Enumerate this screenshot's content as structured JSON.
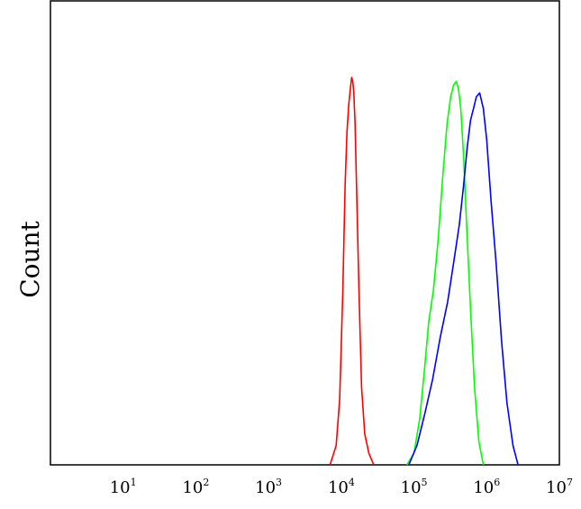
{
  "chart_data": {
    "type": "line",
    "title": "",
    "xlabel": "",
    "ylabel": "Count",
    "xscale": "log",
    "xlim": [
      1,
      10000000
    ],
    "ylim": [
      0,
      100
    ],
    "grid": false,
    "xticks": [
      {
        "base": "10",
        "exp": "1",
        "value": 10
      },
      {
        "base": "10",
        "exp": "2",
        "value": 100
      },
      {
        "base": "10",
        "exp": "3",
        "value": 1000
      },
      {
        "base": "10",
        "exp": "4",
        "value": 10000
      },
      {
        "base": "10",
        "exp": "5",
        "value": 100000
      },
      {
        "base": "10",
        "exp": "6",
        "value": 1000000
      },
      {
        "base": "10",
        "exp": "7",
        "value": 10000000
      }
    ],
    "series": [
      {
        "color": "#ff0000",
        "x": [
          7000,
          8500,
          9500,
          10500,
          11300,
          12000,
          12700,
          13300,
          13900,
          14400,
          14900,
          15500,
          16300,
          17500,
          19000,
          21000,
          24000,
          28000
        ],
        "y": [
          0,
          5,
          17,
          45,
          72,
          86,
          93,
          97,
          100,
          99,
          96,
          88,
          70,
          45,
          20,
          8,
          3,
          0
        ]
      },
      {
        "color": "#00ff00",
        "x": [
          80000,
          100000,
          120000,
          140000,
          160000,
          185000,
          215000,
          250000,
          285000,
          320000,
          350000,
          380000,
          410000,
          440000,
          480000,
          530000,
          600000,
          680000,
          780000,
          900000
        ],
        "y": [
          0,
          3,
          12,
          25,
          37,
          45,
          58,
          75,
          88,
          95,
          98,
          99,
          97,
          92,
          80,
          62,
          40,
          20,
          6,
          0
        ]
      },
      {
        "color": "#0000ff",
        "x": [
          85000,
          110000,
          140000,
          180000,
          230000,
          290000,
          350000,
          420000,
          480000,
          540000,
          600000,
          660000,
          720000,
          800000,
          900000,
          1000000,
          1150000,
          1350000,
          1600000,
          1900000,
          2300000,
          2700000
        ],
        "y": [
          0,
          5,
          13,
          22,
          33,
          42,
          52,
          62,
          72,
          82,
          89,
          92,
          95,
          96,
          92,
          84,
          68,
          52,
          32,
          16,
          5,
          0
        ]
      }
    ]
  }
}
